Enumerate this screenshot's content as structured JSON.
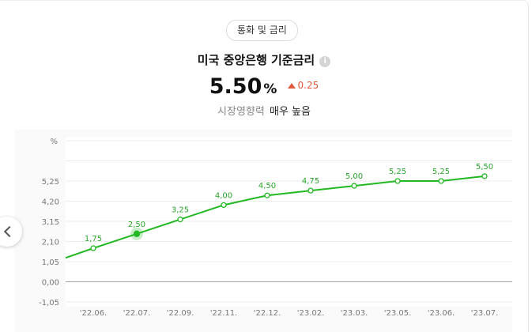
{
  "header": {
    "tag": "통화 및 금리",
    "title": "미국 중앙은행 기준금리",
    "info_icon": "i"
  },
  "summary": {
    "value": "5.50",
    "unit": "%",
    "change": "0.25",
    "impact_label": "시장영향력",
    "impact_value": "매우 높음"
  },
  "colors": {
    "line": "#22b822",
    "label": "#2aa52a",
    "up": "#e05a3c"
  },
  "icons": {
    "nav": "chevron-left-icon",
    "change": "triangle-up-icon",
    "info": "info-icon"
  },
  "chart_data": {
    "type": "line",
    "ylabel": "%",
    "y_ticks": [
      "5,25",
      "4,20",
      "3,15",
      "2,10",
      "1,05",
      "0,00",
      "-1,05"
    ],
    "y_tick_values": [
      5.25,
      4.2,
      3.15,
      2.1,
      1.05,
      0.0,
      -1.05
    ],
    "ylim": [
      -1.05,
      7.35
    ],
    "grid": true,
    "x_ticks": [
      "'22.06.",
      "'22.07.",
      "'22.09.",
      "'22.11.",
      "'22.12.",
      "'23.02.",
      "'23.03.",
      "'23.05.",
      "'23.06.",
      "'23.07."
    ],
    "series": [
      {
        "values": [
          1.75,
          2.5,
          3.25,
          4.0,
          4.5,
          4.75,
          5.0,
          5.25,
          5.25,
          5.5
        ],
        "labels": [
          "1,75",
          "2,50",
          "3,25",
          "4,00",
          "4,50",
          "4,75",
          "5,00",
          "5,25",
          "5,25",
          "5,50"
        ]
      }
    ],
    "line_start_value": 1.25,
    "highlighted_index": 1
  }
}
